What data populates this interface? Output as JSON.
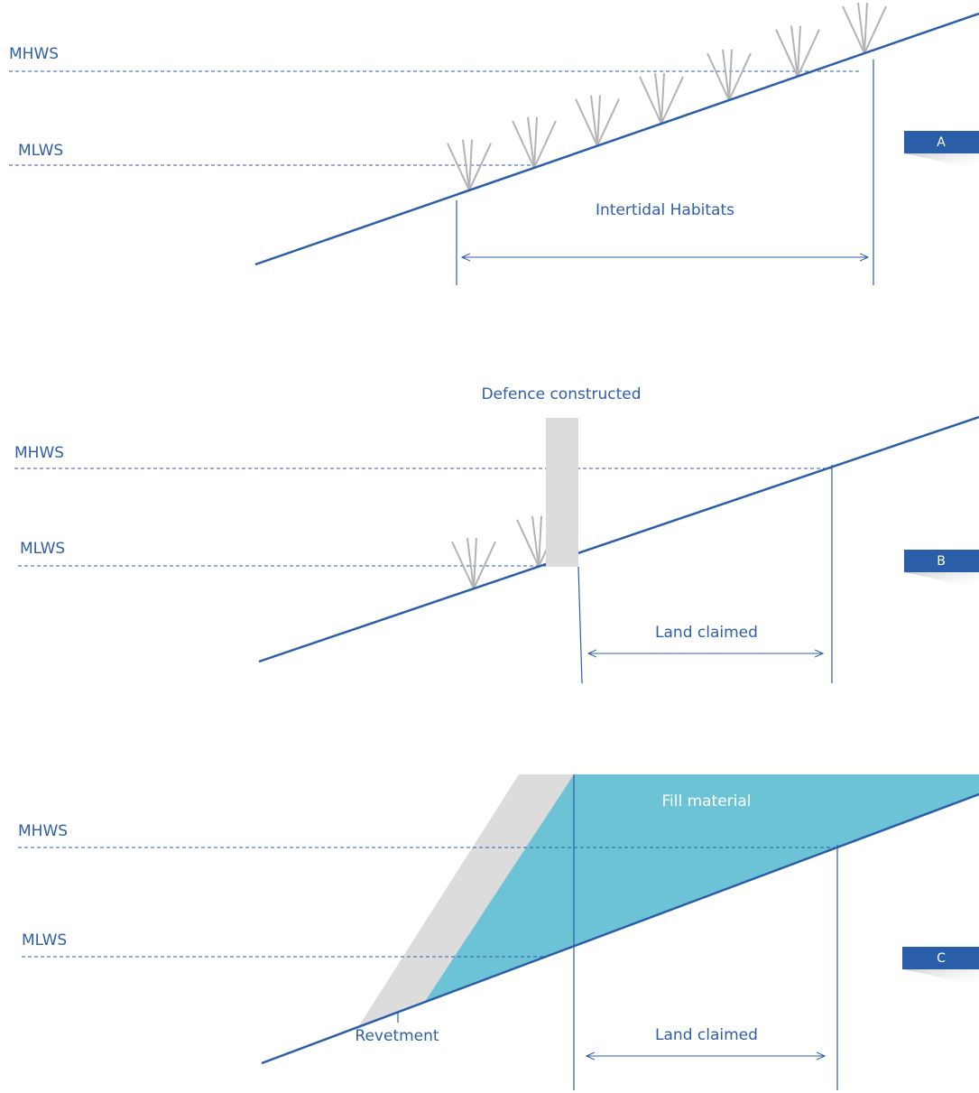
{
  "panels": [
    {
      "id": "A",
      "mhws": "MHWS",
      "mlws": "MLWS",
      "span_label": "Intertidal Habitats"
    },
    {
      "id": "B",
      "mhws": "MHWS",
      "mlws": "MLWS",
      "structure_label": "Defence constructed",
      "span_label": "Land claimed"
    },
    {
      "id": "C",
      "mhws": "MHWS",
      "mlws": "MLWS",
      "fill_label": "Fill material",
      "structure_label": "Revetment",
      "span_label": "Land claimed"
    }
  ]
}
